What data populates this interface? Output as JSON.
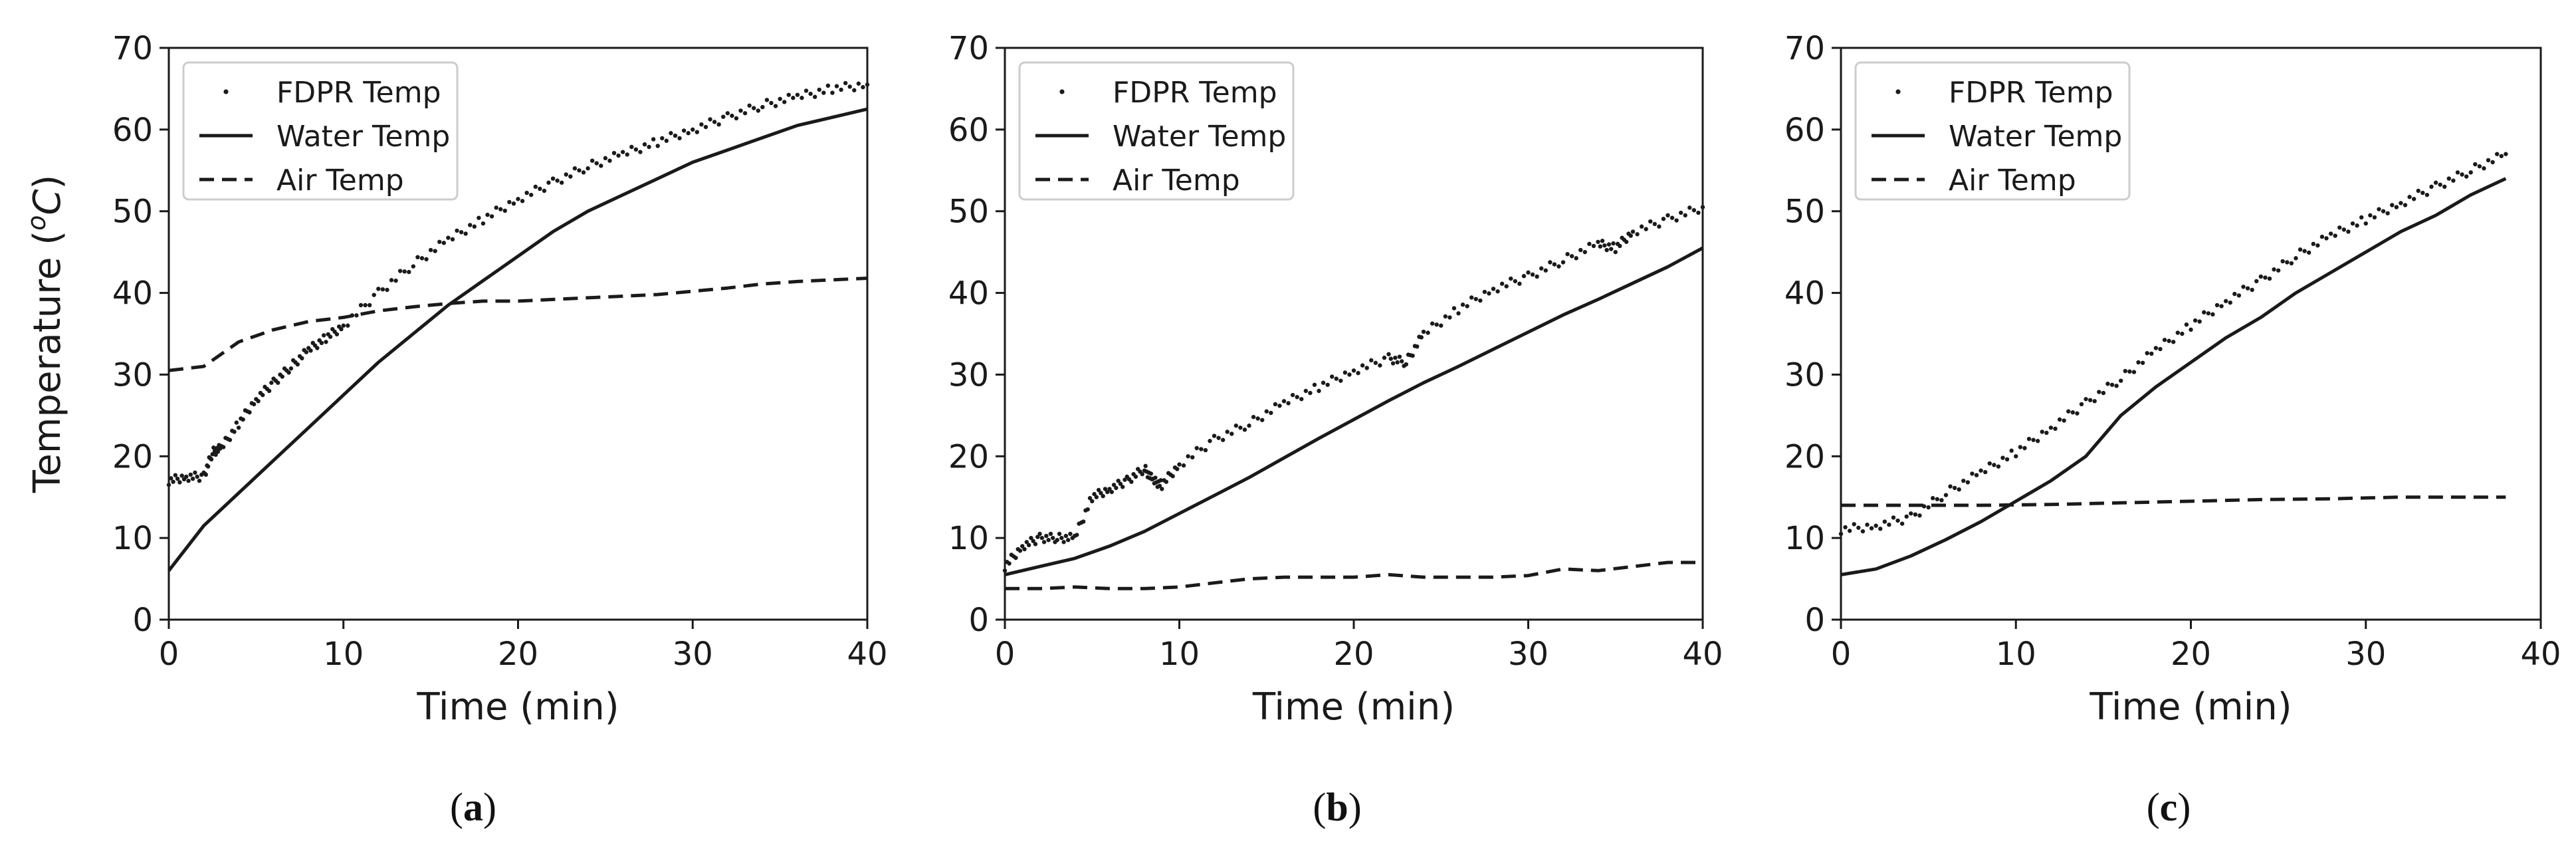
{
  "figure": {
    "panels": [
      {
        "label": "a"
      },
      {
        "label": "b"
      },
      {
        "label": "c"
      }
    ]
  },
  "chart_data": [
    {
      "type": "line",
      "panel": "a",
      "xlabel": "Time (min)",
      "ylabel_main": "Temperature (",
      "ylabel_sup": "o",
      "ylabel_unit": "C",
      "ylabel_close": ")",
      "xlim": [
        0,
        40
      ],
      "ylim": [
        0,
        70
      ],
      "xticks": [
        0,
        10,
        20,
        30,
        40
      ],
      "yticks": [
        0,
        10,
        20,
        30,
        40,
        50,
        60,
        70
      ],
      "grid": false,
      "legend_position": "top-left",
      "series": [
        {
          "name": "FDPR Temp",
          "style": "points",
          "x": [
            0,
            1,
            2,
            2.5,
            3,
            4,
            5,
            6,
            7,
            8,
            9,
            10,
            12,
            14,
            16,
            18,
            20,
            22,
            24,
            26,
            28,
            30,
            32,
            34,
            36,
            38,
            40
          ],
          "y": [
            17,
            17.5,
            17.5,
            20.5,
            21,
            24,
            27,
            29,
            31,
            33,
            34.5,
            36,
            40,
            43.5,
            46.5,
            49,
            51.5,
            53.5,
            55.5,
            57,
            58.5,
            60,
            61.5,
            63,
            64,
            65,
            65.5
          ]
        },
        {
          "name": "Water Temp",
          "style": "solid",
          "x": [
            0,
            2,
            4,
            6,
            8,
            10,
            12,
            14,
            16,
            18,
            20,
            22,
            24,
            26,
            28,
            30,
            32,
            34,
            36,
            38,
            40
          ],
          "y": [
            6,
            11.5,
            15.5,
            19.5,
            23.5,
            27.5,
            31.5,
            35,
            38.5,
            41.5,
            44.5,
            47.5,
            50,
            52,
            54,
            56,
            57.5,
            59,
            60.5,
            61.5,
            62.5
          ]
        },
        {
          "name": "Air Temp",
          "style": "dashed",
          "x": [
            0,
            2,
            4,
            6,
            8,
            10,
            12,
            14,
            16,
            18,
            20,
            22,
            24,
            26,
            28,
            30,
            32,
            34,
            36,
            38,
            40
          ],
          "y": [
            30.5,
            31,
            34,
            35.5,
            36.5,
            37,
            37.8,
            38.3,
            38.7,
            39,
            39,
            39.2,
            39.4,
            39.6,
            39.8,
            40.2,
            40.6,
            41.1,
            41.4,
            41.6,
            41.8
          ]
        }
      ]
    },
    {
      "type": "line",
      "panel": "b",
      "xlabel": "Time (min)",
      "xlim": [
        0,
        40
      ],
      "ylim": [
        0,
        70
      ],
      "xticks": [
        0,
        10,
        20,
        30,
        40
      ],
      "yticks": [
        0,
        10,
        20,
        30,
        40,
        50,
        60,
        70
      ],
      "grid": false,
      "legend_position": "top-left",
      "series": [
        {
          "name": "FDPR Temp",
          "style": "points",
          "x": [
            0,
            1,
            2,
            3,
            4,
            5,
            6,
            7,
            8,
            8.5,
            9,
            10,
            12,
            14,
            16,
            18,
            20,
            22,
            23,
            24,
            26,
            28,
            30,
            32,
            34,
            35,
            36,
            38,
            40
          ],
          "y": [
            6.5,
            9,
            10,
            10,
            10,
            15,
            16,
            17,
            18.5,
            17,
            16.5,
            19,
            22,
            24,
            26.5,
            28.5,
            30.5,
            32,
            31.5,
            35,
            38,
            40.5,
            42,
            44,
            46,
            45.5,
            47.5,
            49,
            50.5
          ]
        },
        {
          "name": "Water Temp",
          "style": "solid",
          "x": [
            0,
            2,
            4,
            6,
            8,
            10,
            12,
            14,
            16,
            18,
            20,
            22,
            24,
            26,
            28,
            30,
            32,
            34,
            36,
            38,
            40
          ],
          "y": [
            5.5,
            6.5,
            7.5,
            9,
            10.8,
            13,
            15.2,
            17.4,
            19.8,
            22.2,
            24.5,
            26.8,
            29,
            31,
            33.1,
            35.2,
            37.3,
            39.2,
            41.2,
            43.2,
            45.5
          ]
        },
        {
          "name": "Air Temp",
          "style": "dashed",
          "x": [
            0,
            2,
            4,
            6,
            8,
            10,
            12,
            14,
            16,
            18,
            20,
            22,
            24,
            26,
            28,
            30,
            32,
            34,
            36,
            38,
            40
          ],
          "y": [
            3.8,
            3.8,
            4,
            3.8,
            3.8,
            4,
            4.5,
            5,
            5.2,
            5.2,
            5.2,
            5.5,
            5.2,
            5.2,
            5.2,
            5.4,
            6.2,
            6,
            6.5,
            7,
            7
          ]
        }
      ]
    },
    {
      "type": "line",
      "panel": "c",
      "xlabel": "Time (min)",
      "xlim": [
        0,
        40
      ],
      "ylim": [
        0,
        70
      ],
      "xticks": [
        0,
        10,
        20,
        30,
        40
      ],
      "yticks": [
        0,
        10,
        20,
        30,
        40,
        50,
        60,
        70
      ],
      "grid": false,
      "legend_position": "top-left",
      "series": [
        {
          "name": "FDPR Temp",
          "style": "points",
          "x": [
            0,
            2,
            4,
            6,
            8,
            10,
            12,
            14,
            16,
            18,
            20,
            22,
            24,
            26,
            28,
            30,
            32,
            34,
            36,
            38
          ],
          "y": [
            11,
            11.5,
            12.5,
            15.5,
            18,
            20.5,
            23.5,
            26.5,
            29.5,
            33,
            36,
            39,
            41.5,
            44.5,
            47,
            49,
            51,
            53,
            55,
            57
          ]
        },
        {
          "name": "Water Temp",
          "style": "solid",
          "x": [
            0,
            2,
            4,
            6,
            8,
            10,
            12,
            14,
            16,
            18,
            20,
            22,
            24,
            26,
            28,
            30,
            32,
            34,
            36,
            38
          ],
          "y": [
            5.5,
            6.2,
            7.8,
            9.8,
            12,
            14.5,
            17,
            20,
            25,
            28.5,
            31.5,
            34.5,
            37,
            40,
            42.5,
            45,
            47.5,
            49.5,
            52,
            54
          ]
        },
        {
          "name": "Air Temp",
          "style": "dashed",
          "x": [
            0,
            4,
            8,
            12,
            16,
            20,
            24,
            28,
            32,
            36,
            38
          ],
          "y": [
            14,
            14,
            14,
            14.1,
            14.3,
            14.5,
            14.7,
            14.8,
            15,
            15,
            15
          ]
        }
      ]
    }
  ]
}
